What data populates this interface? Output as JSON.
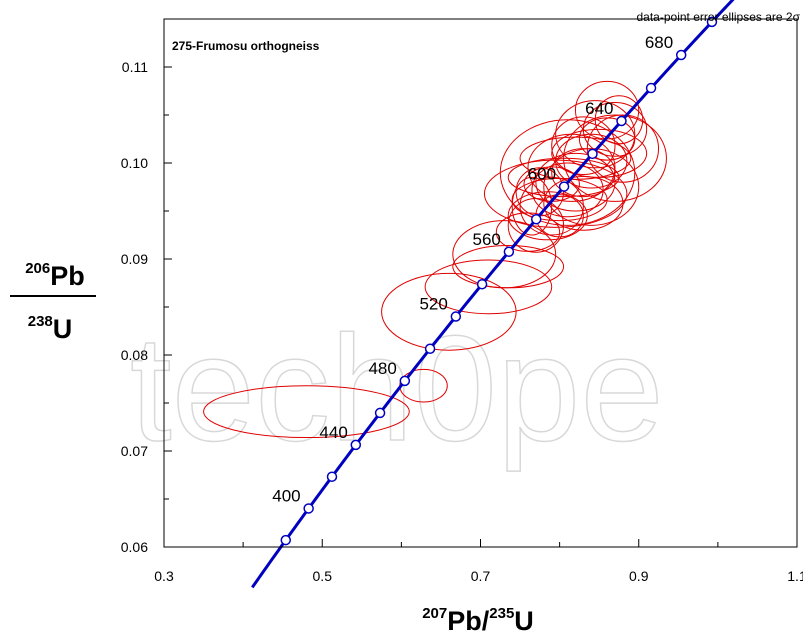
{
  "chart_data": {
    "type": "scatter",
    "title": "275-Frumosu orthogneiss",
    "note": "data-point error ellipses are 2σ",
    "xlabel": {
      "iso": "207",
      "el": "Pb",
      "iso2": "235",
      "el2": "U"
    },
    "ylabel": {
      "iso": "206",
      "el": "Pb",
      "iso2": "238",
      "el2": "U"
    },
    "xlim": [
      0.3,
      1.1
    ],
    "ylim": [
      0.06,
      0.115
    ],
    "xticks": [
      0.3,
      0.5,
      0.7,
      0.9,
      1.1
    ],
    "xtick_labels": [
      "0.3",
      "0.5",
      "0.7",
      "0.9",
      "1.1"
    ],
    "yticks": [
      0.06,
      0.07,
      0.08,
      0.09,
      0.1,
      0.11
    ],
    "ytick_labels": [
      "0.06",
      "0.07",
      "0.08",
      "0.09",
      "0.10",
      "0.11"
    ],
    "watermark": "tech0pe",
    "concordia": {
      "ages_ma": [
        380,
        400,
        420,
        440,
        460,
        480,
        500,
        520,
        540,
        560,
        580,
        600,
        620,
        640,
        660,
        680,
        700
      ],
      "labeled_ages": [
        "400",
        "440",
        "480",
        "520",
        "560",
        "600",
        "640",
        "680"
      ],
      "color": "#0000c0"
    },
    "ellipse_color": "#e00000",
    "ellipses": [
      {
        "x": 0.48,
        "y": 0.0741,
        "rx": 0.13,
        "ry": 0.0027
      },
      {
        "x": 0.628,
        "y": 0.0768,
        "rx": 0.03,
        "ry": 0.0017
      },
      {
        "x": 0.66,
        "y": 0.0845,
        "rx": 0.085,
        "ry": 0.004
      },
      {
        "x": 0.71,
        "y": 0.0871,
        "rx": 0.08,
        "ry": 0.0028
      },
      {
        "x": 0.735,
        "y": 0.0892,
        "rx": 0.07,
        "ry": 0.0022
      },
      {
        "x": 0.73,
        "y": 0.0905,
        "rx": 0.065,
        "ry": 0.0035
      },
      {
        "x": 0.76,
        "y": 0.0928,
        "rx": 0.04,
        "ry": 0.002
      },
      {
        "x": 0.77,
        "y": 0.0935,
        "rx": 0.035,
        "ry": 0.0028
      },
      {
        "x": 0.785,
        "y": 0.0945,
        "rx": 0.05,
        "ry": 0.0025
      },
      {
        "x": 0.79,
        "y": 0.0955,
        "rx": 0.04,
        "ry": 0.003
      },
      {
        "x": 0.8,
        "y": 0.0962,
        "rx": 0.06,
        "ry": 0.0022
      },
      {
        "x": 0.795,
        "y": 0.0968,
        "rx": 0.09,
        "ry": 0.0035
      },
      {
        "x": 0.81,
        "y": 0.0972,
        "rx": 0.045,
        "ry": 0.0028
      },
      {
        "x": 0.82,
        "y": 0.098,
        "rx": 0.05,
        "ry": 0.003
      },
      {
        "x": 0.805,
        "y": 0.0985,
        "rx": 0.07,
        "ry": 0.002
      },
      {
        "x": 0.83,
        "y": 0.099,
        "rx": 0.04,
        "ry": 0.0025
      },
      {
        "x": 0.815,
        "y": 0.0995,
        "rx": 0.055,
        "ry": 0.0035
      },
      {
        "x": 0.84,
        "y": 0.1002,
        "rx": 0.045,
        "ry": 0.0028
      },
      {
        "x": 0.85,
        "y": 0.101,
        "rx": 0.06,
        "ry": 0.0025
      },
      {
        "x": 0.83,
        "y": 0.1018,
        "rx": 0.04,
        "ry": 0.003
      },
      {
        "x": 0.86,
        "y": 0.1025,
        "rx": 0.035,
        "ry": 0.0022
      },
      {
        "x": 0.845,
        "y": 0.103,
        "rx": 0.05,
        "ry": 0.0035
      },
      {
        "x": 0.87,
        "y": 0.1035,
        "rx": 0.04,
        "ry": 0.0028
      },
      {
        "x": 0.875,
        "y": 0.1045,
        "rx": 0.03,
        "ry": 0.0025
      },
      {
        "x": 0.86,
        "y": 0.1055,
        "rx": 0.04,
        "ry": 0.003
      },
      {
        "x": 0.775,
        "y": 0.097,
        "rx": 0.03,
        "ry": 0.0025
      },
      {
        "x": 0.765,
        "y": 0.0955,
        "rx": 0.025,
        "ry": 0.003
      },
      {
        "x": 0.8,
        "y": 0.0945,
        "rx": 0.03,
        "ry": 0.0022
      },
      {
        "x": 0.83,
        "y": 0.0958,
        "rx": 0.05,
        "ry": 0.0028
      },
      {
        "x": 0.79,
        "y": 0.0978,
        "rx": 0.035,
        "ry": 0.0018
      },
      {
        "x": 0.82,
        "y": 0.1005,
        "rx": 0.07,
        "ry": 0.0022
      },
      {
        "x": 0.84,
        "y": 0.0975,
        "rx": 0.06,
        "ry": 0.004
      },
      {
        "x": 0.87,
        "y": 0.1005,
        "rx": 0.065,
        "ry": 0.0045
      },
      {
        "x": 0.88,
        "y": 0.1015,
        "rx": 0.045,
        "ry": 0.0035
      },
      {
        "x": 0.81,
        "y": 0.099,
        "rx": 0.085,
        "ry": 0.0055
      }
    ]
  }
}
